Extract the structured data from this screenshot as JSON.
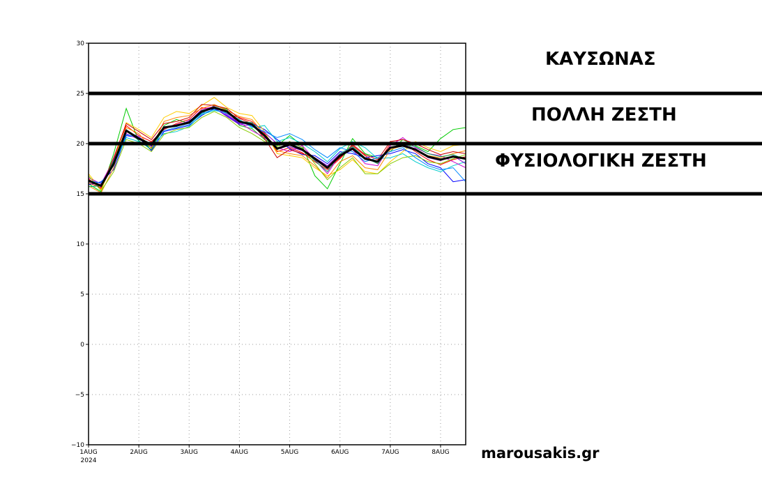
{
  "labels": {
    "heatwave": "ΚΑΥΣΩΝΑΣ",
    "very_hot": "ΠΟΛΛΗ ΖΕΣΤΗ",
    "normal_heat": "ΦΥΣΙΟΛΟΓΙΚΗ ΖΕΣΤΗ",
    "watermark": "marousakis.gr"
  },
  "chart_data": {
    "type": "line",
    "title": "",
    "xlabel": "",
    "ylabel": "",
    "ylim": [
      -10,
      30
    ],
    "yticks": [
      -10,
      -5,
      0,
      5,
      10,
      15,
      20,
      25,
      30
    ],
    "xlim": [
      0,
      7.5
    ],
    "xticks": [
      {
        "x": 0,
        "label": "1AUG",
        "sub": "2024"
      },
      {
        "x": 1,
        "label": "2AUG"
      },
      {
        "x": 2,
        "label": "3AUG"
      },
      {
        "x": 3,
        "label": "4AUG"
      },
      {
        "x": 4,
        "label": "5AUG"
      },
      {
        "x": 5,
        "label": "6AUG"
      },
      {
        "x": 6,
        "label": "7AUG"
      },
      {
        "x": 7,
        "label": "8AUG"
      }
    ],
    "grid": true,
    "threshold_lines": [
      15,
      20,
      25
    ],
    "x": [
      0,
      0.25,
      0.5,
      0.75,
      1,
      1.25,
      1.5,
      1.75,
      2,
      2.25,
      2.5,
      2.75,
      3,
      3.25,
      3.5,
      3.75,
      4,
      4.25,
      4.5,
      4.75,
      5,
      5.25,
      5.5,
      5.75,
      6,
      6.25,
      6.5,
      6.75,
      7,
      7.25,
      7.5
    ],
    "mean": [
      16.3,
      15.8,
      18.0,
      21.3,
      20.5,
      19.9,
      21.6,
      21.8,
      22.1,
      23.2,
      23.6,
      23.2,
      22.2,
      21.9,
      20.8,
      19.5,
      19.9,
      19.4,
      18.5,
      17.6,
      18.8,
      19.5,
      18.5,
      18.2,
      19.6,
      19.8,
      19.4,
      18.7,
      18.4,
      18.7,
      18.5
    ],
    "members": [
      {
        "color": "#ff0000",
        "values": [
          16.5,
          15.5,
          18.5,
          21.8,
          20.8,
          20.2,
          21.4,
          22.0,
          22.4,
          23.6,
          23.4,
          23.0,
          22.6,
          22.2,
          21.0,
          19.2,
          19.6,
          19.1,
          18.2,
          17.4,
          18.5,
          19.8,
          18.8,
          18.0,
          20.0,
          20.1,
          19.2,
          18.4,
          17.9,
          18.4,
          18.7
        ]
      },
      {
        "color": "#00cc00",
        "values": [
          16.0,
          15.2,
          19.0,
          23.5,
          20.2,
          19.6,
          21.8,
          22.4,
          22.0,
          23.0,
          23.8,
          23.4,
          21.8,
          21.5,
          20.4,
          19.8,
          20.8,
          19.8,
          16.8,
          15.5,
          18.0,
          20.5,
          19.0,
          18.6,
          19.2,
          20.4,
          19.8,
          19.2,
          20.5,
          21.4,
          21.6
        ]
      },
      {
        "color": "#0000ff",
        "values": [
          15.9,
          16.2,
          17.4,
          20.8,
          20.6,
          19.3,
          21.2,
          21.5,
          21.8,
          22.8,
          23.5,
          22.8,
          22.0,
          22.0,
          21.4,
          20.4,
          19.5,
          18.9,
          18.8,
          18.0,
          19.2,
          19.0,
          18.6,
          18.8,
          19.0,
          19.4,
          19.0,
          18.0,
          17.6,
          16.2,
          16.4
        ]
      },
      {
        "color": "#ffcc00",
        "values": [
          17.0,
          15.4,
          18.2,
          22.1,
          21.4,
          20.6,
          22.6,
          23.2,
          23.0,
          23.8,
          24.6,
          23.6,
          23.0,
          22.8,
          21.2,
          19.0,
          18.8,
          18.6,
          17.6,
          16.8,
          17.4,
          18.4,
          17.2,
          17.0,
          18.2,
          19.2,
          20.2,
          19.6,
          19.2,
          19.8,
          19.9
        ]
      },
      {
        "color": "#00cccc",
        "values": [
          16.2,
          15.9,
          17.9,
          20.6,
          20.2,
          19.8,
          21.0,
          21.2,
          21.7,
          22.9,
          23.3,
          23.1,
          22.4,
          21.6,
          21.8,
          20.2,
          20.6,
          20.0,
          19.2,
          18.2,
          19.5,
          20.2,
          19.6,
          18.5,
          18.6,
          19.0,
          18.2,
          17.6,
          17.2,
          17.8,
          18.2
        ]
      },
      {
        "color": "#cc00cc",
        "values": [
          16.6,
          16.0,
          18.4,
          21.0,
          20.4,
          20.0,
          21.5,
          21.9,
          22.2,
          23.4,
          23.7,
          22.9,
          22.1,
          21.3,
          20.6,
          19.6,
          19.2,
          19.8,
          18.4,
          17.0,
          18.9,
          19.4,
          18.0,
          17.8,
          19.8,
          20.6,
          19.6,
          19.0,
          18.8,
          18.2,
          17.6
        ]
      },
      {
        "color": "#ff8800",
        "values": [
          15.8,
          15.1,
          17.6,
          21.6,
          21.0,
          19.5,
          22.2,
          22.6,
          22.8,
          23.5,
          23.9,
          23.3,
          22.7,
          22.4,
          20.9,
          19.3,
          19.0,
          18.8,
          17.8,
          16.6,
          18.2,
          18.8,
          17.6,
          17.4,
          19.4,
          19.8,
          19.4,
          18.8,
          18.6,
          19.0,
          19.3
        ]
      },
      {
        "color": "#8800cc",
        "values": [
          16.4,
          15.7,
          18.1,
          21.2,
          20.7,
          19.7,
          21.7,
          21.7,
          22.3,
          23.1,
          23.6,
          22.7,
          21.9,
          21.8,
          21.1,
          20.0,
          19.7,
          19.3,
          18.6,
          17.8,
          19.0,
          19.6,
          18.4,
          18.3,
          19.5,
          19.9,
          19.5,
          18.6,
          18.3,
          18.8,
          18.0
        ]
      },
      {
        "color": "#88cc00",
        "values": [
          16.8,
          15.3,
          17.2,
          20.4,
          20.0,
          19.2,
          20.9,
          21.4,
          21.6,
          22.6,
          23.2,
          22.6,
          21.6,
          21.0,
          20.2,
          19.7,
          20.2,
          19.6,
          18.0,
          16.4,
          17.6,
          18.6,
          17.0,
          17.0,
          18.0,
          18.6,
          18.8,
          18.2,
          18.0,
          18.5,
          18.9
        ]
      },
      {
        "color": "#cc0000",
        "values": [
          16.1,
          15.6,
          18.6,
          22.0,
          21.2,
          20.4,
          22.0,
          22.2,
          22.6,
          23.9,
          23.8,
          23.5,
          22.5,
          22.0,
          20.5,
          18.6,
          19.4,
          19.0,
          18.6,
          17.6,
          18.6,
          19.9,
          18.9,
          18.4,
          20.2,
          20.4,
          20.0,
          19.4,
          18.9,
          19.2,
          19.0
        ]
      },
      {
        "color": "#0088ff",
        "values": [
          16.3,
          16.1,
          17.8,
          20.9,
          20.6,
          19.9,
          21.3,
          21.6,
          21.9,
          23.0,
          23.4,
          23.0,
          22.3,
          21.7,
          21.2,
          20.6,
          21.0,
          20.4,
          19.4,
          18.6,
          19.6,
          19.2,
          18.2,
          18.6,
          19.2,
          19.6,
          18.6,
          17.8,
          17.4,
          17.6,
          16.2
        ]
      },
      {
        "color": "#00aa66",
        "values": [
          15.7,
          15.8,
          18.3,
          21.4,
          20.3,
          19.4,
          21.6,
          21.7,
          22.2,
          23.3,
          23.5,
          23.3,
          22.2,
          22.1,
          20.7,
          19.4,
          20.0,
          19.5,
          18.3,
          17.2,
          19.0,
          19.7,
          18.6,
          18.0,
          19.6,
          19.9,
          19.7,
          19.0,
          18.7,
          18.9,
          18.4
        ]
      }
    ]
  }
}
